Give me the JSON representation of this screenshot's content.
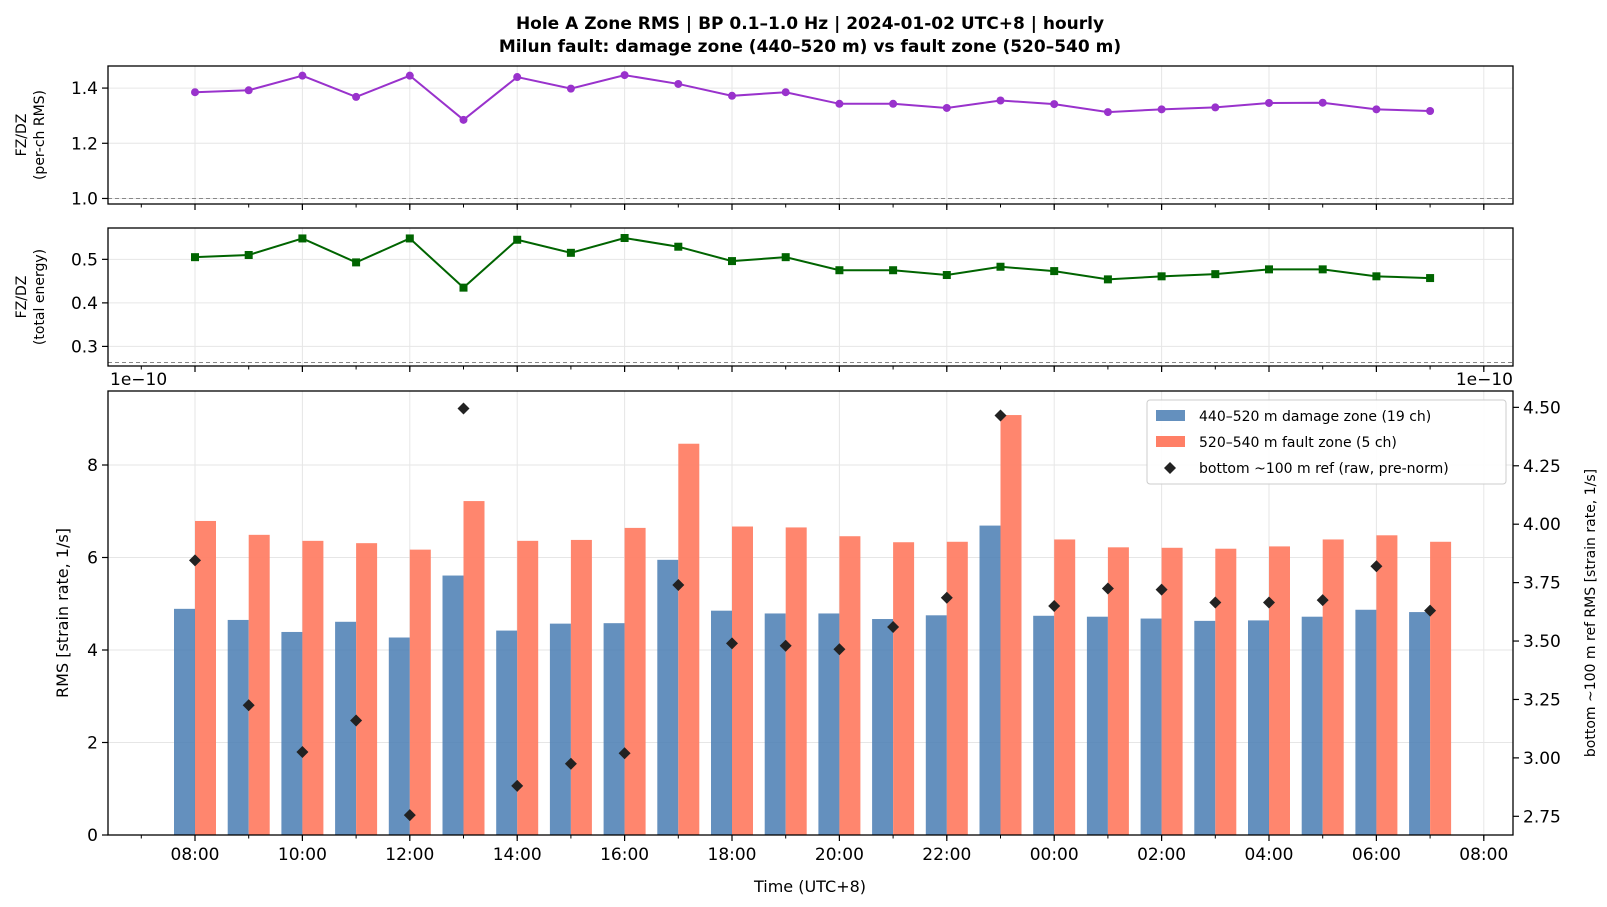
{
  "figure": {
    "title_line1": "Hole A Zone RMS  |  BP 0.1–1.0 Hz  |  2024-01-02 UTC+8  |  hourly",
    "title_line2": "Milun fault: damage zone (440–520 m) vs fault zone (520–540 m)"
  },
  "chart_data": [
    {
      "type": "line",
      "ylabel_line1": "FZ/DZ",
      "ylabel_line2": "(per-ch RMS)",
      "ylim": [
        0.98,
        1.48
      ],
      "yticks": [
        1.0,
        1.2,
        1.4
      ],
      "ytick_labels": [
        "1.0",
        "1.2",
        "1.4"
      ],
      "reference_line": 1.0,
      "grid": true,
      "color": "#9932CC",
      "x": [
        "08:00",
        "09:00",
        "10:00",
        "11:00",
        "12:00",
        "13:00",
        "14:00",
        "15:00",
        "16:00",
        "17:00",
        "18:00",
        "19:00",
        "20:00",
        "21:00",
        "22:00",
        "23:00",
        "00:00",
        "01:00",
        "02:00",
        "03:00",
        "04:00",
        "05:00",
        "06:00",
        "07:00"
      ],
      "values": [
        1.385,
        1.392,
        1.445,
        1.368,
        1.445,
        1.285,
        1.44,
        1.398,
        1.447,
        1.415,
        1.372,
        1.385,
        1.343,
        1.343,
        1.328,
        1.355,
        1.342,
        1.313,
        1.323,
        1.33,
        1.346,
        1.347,
        1.323,
        1.317
      ]
    },
    {
      "type": "line",
      "ylabel_line1": "FZ/DZ",
      "ylabel_line2": "(total energy)",
      "ylim": [
        0.255,
        0.572
      ],
      "yticks": [
        0.3,
        0.4,
        0.5
      ],
      "ytick_labels": [
        "0.3",
        "0.4",
        "0.5"
      ],
      "reference_line": 0.263,
      "grid": true,
      "color": "#006400",
      "x": [
        "08:00",
        "09:00",
        "10:00",
        "11:00",
        "12:00",
        "13:00",
        "14:00",
        "15:00",
        "16:00",
        "17:00",
        "18:00",
        "19:00",
        "20:00",
        "21:00",
        "22:00",
        "23:00",
        "00:00",
        "01:00",
        "02:00",
        "03:00",
        "04:00",
        "05:00",
        "06:00",
        "07:00"
      ],
      "values": [
        0.505,
        0.51,
        0.548,
        0.493,
        0.548,
        0.435,
        0.545,
        0.515,
        0.549,
        0.529,
        0.496,
        0.505,
        0.475,
        0.475,
        0.464,
        0.483,
        0.473,
        0.454,
        0.461,
        0.466,
        0.477,
        0.477,
        0.461,
        0.457
      ]
    },
    {
      "type": "bar",
      "xlabel": "Time (UTC+8)",
      "ylabel": "RMS  [strain rate, 1/s]",
      "y2label": "bottom ~100 m ref RMS  [strain rate, 1/s]",
      "offset_left": "1e−10",
      "offset_right": "1e−10",
      "ylim": [
        0,
        9.6
      ],
      "y2lim": [
        2.67,
        4.57
      ],
      "yticks": [
        0,
        2,
        4,
        6,
        8
      ],
      "ytick_labels": [
        "0",
        "2",
        "4",
        "6",
        "8"
      ],
      "y2ticks": [
        2.75,
        3.0,
        3.25,
        3.5,
        3.75,
        4.0,
        4.25,
        4.5
      ],
      "y2tick_labels": [
        "2.75",
        "3.00",
        "3.25",
        "3.50",
        "3.75",
        "4.00",
        "4.25",
        "4.50"
      ],
      "xtick_labels": [
        "08:00",
        "10:00",
        "12:00",
        "14:00",
        "16:00",
        "18:00",
        "20:00",
        "22:00",
        "00:00",
        "02:00",
        "04:00",
        "06:00",
        "08:00"
      ],
      "legend_position": "top-right",
      "grid": true,
      "categories": [
        "08:00",
        "09:00",
        "10:00",
        "11:00",
        "12:00",
        "13:00",
        "14:00",
        "15:00",
        "16:00",
        "17:00",
        "18:00",
        "19:00",
        "20:00",
        "21:00",
        "22:00",
        "23:00",
        "00:00",
        "01:00",
        "02:00",
        "03:00",
        "04:00",
        "05:00",
        "06:00",
        "07:00"
      ],
      "series": [
        {
          "name": "440–520 m  damage zone (19 ch)",
          "color": "#4F81B5",
          "values": [
            4.89,
            4.65,
            4.39,
            4.61,
            4.27,
            5.61,
            4.42,
            4.57,
            4.58,
            5.95,
            4.85,
            4.79,
            4.79,
            4.67,
            4.75,
            6.69,
            4.74,
            4.72,
            4.68,
            4.63,
            4.64,
            4.72,
            4.87,
            4.82
          ]
        },
        {
          "name": "520–540 m  fault zone (5 ch)",
          "color": "#FF7F66",
          "values": [
            6.79,
            6.49,
            6.36,
            6.31,
            6.17,
            7.22,
            6.36,
            6.38,
            6.64,
            8.46,
            6.67,
            6.65,
            6.46,
            6.33,
            6.34,
            9.08,
            6.39,
            6.22,
            6.21,
            6.19,
            6.24,
            6.39,
            6.48,
            6.34
          ]
        },
        {
          "name": "bottom ~100 m ref (raw, pre-norm)",
          "color": "#222222",
          "axis": "right",
          "values": [
            3.845,
            3.225,
            3.025,
            3.16,
            2.755,
            4.495,
            2.88,
            2.975,
            3.02,
            3.74,
            3.49,
            3.48,
            3.465,
            3.56,
            3.685,
            4.465,
            3.65,
            3.725,
            3.72,
            3.665,
            3.665,
            3.675,
            3.82,
            3.63
          ]
        }
      ]
    }
  ]
}
